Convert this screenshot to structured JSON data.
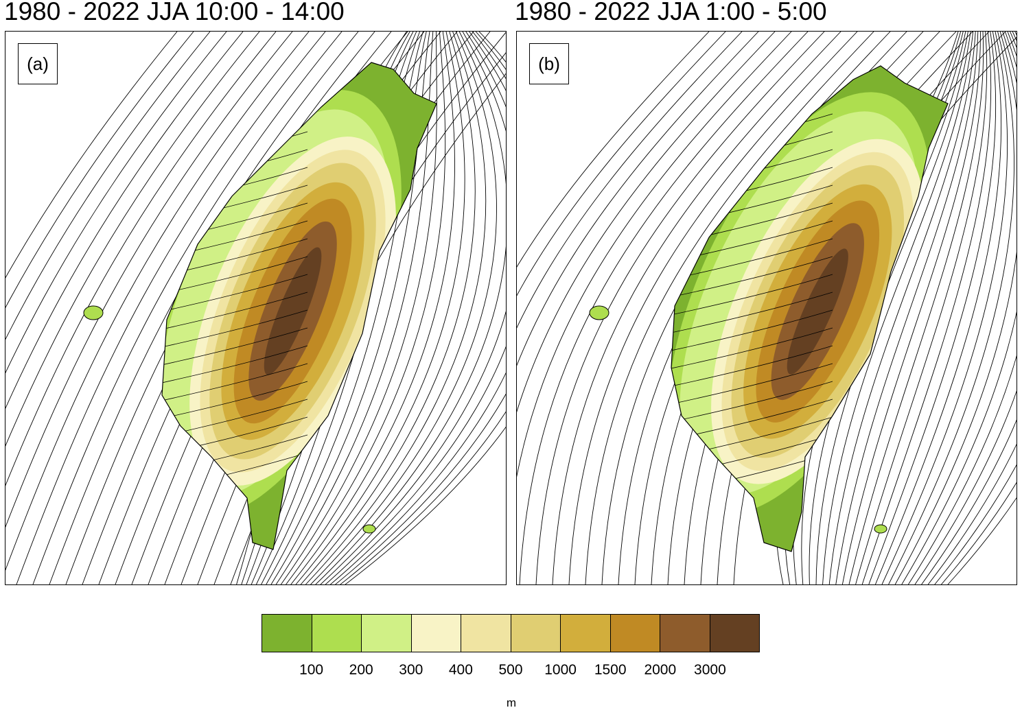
{
  "panels": [
    {
      "title": "1980 - 2022 JJA 10:00 - 14:00",
      "label": "(a)"
    },
    {
      "title": "1980 - 2022 JJA 1:00 - 5:00",
      "label": "(b)"
    }
  ],
  "colorbar": {
    "colors": [
      "#7db22f",
      "#aede4f",
      "#d0f086",
      "#f8f3c6",
      "#f0e4a2",
      "#e0ce72",
      "#d2ae3c",
      "#c08a24",
      "#8e5c2c",
      "#644022"
    ],
    "labels": [
      "100",
      "200",
      "300",
      "400",
      "500",
      "1000",
      "1500",
      "2000",
      "3000"
    ],
    "unit": "m"
  }
}
